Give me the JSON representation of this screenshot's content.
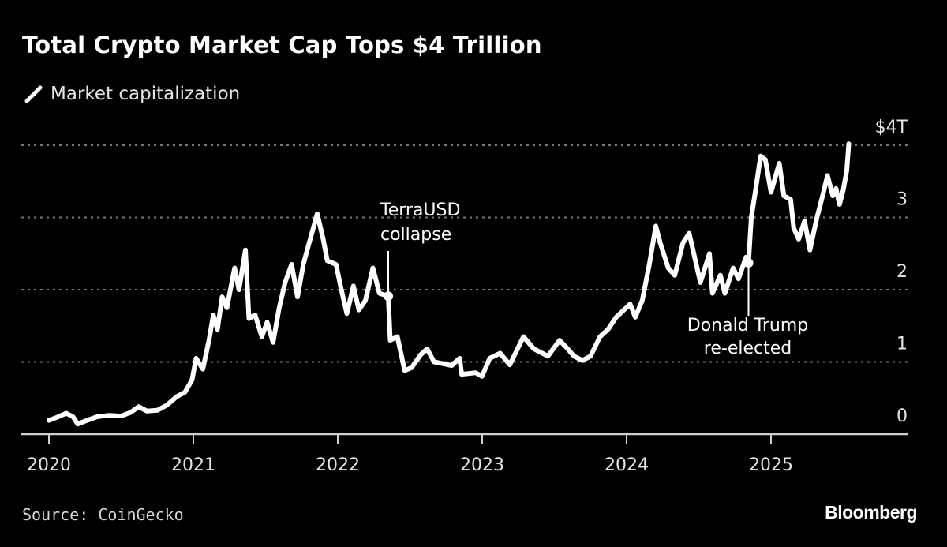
{
  "title": "Total Crypto Market Cap Tops $4 Trillion",
  "legend": {
    "icon": "line-swatch-icon",
    "label": "Market capitalization"
  },
  "source": "Source: CoinGecko",
  "logo": "Bloomberg",
  "colors": {
    "background": "#000000",
    "line": "#ffffff",
    "grid": "#777777",
    "text": "#e6e6e6"
  },
  "chart_data": {
    "type": "line",
    "title": "Total Crypto Market Cap Tops $4 Trillion",
    "xlabel": "",
    "ylabel": "",
    "x_ticks": [
      "2020",
      "2021",
      "2022",
      "2023",
      "2024",
      "2025"
    ],
    "y_ticks": [
      {
        "value": 0,
        "label": "0"
      },
      {
        "value": 1,
        "label": "1"
      },
      {
        "value": 2,
        "label": "2"
      },
      {
        "value": 3,
        "label": "3"
      },
      {
        "value": 4,
        "label": "$4T"
      }
    ],
    "ylim": [
      0,
      4
    ],
    "xlim": [
      "2019-10-15",
      "2025-09-15"
    ],
    "grid": "horizontal dotted",
    "y_axis_position": "right",
    "legend_position": "top-left",
    "unit": "trillion USD",
    "series": [
      {
        "name": "Market capitalization",
        "points": [
          [
            "2020-01-01",
            0.19
          ],
          [
            "2020-01-20",
            0.23
          ],
          [
            "2020-02-14",
            0.29
          ],
          [
            "2020-03-01",
            0.24
          ],
          [
            "2020-03-13",
            0.14
          ],
          [
            "2020-04-01",
            0.18
          ],
          [
            "2020-05-01",
            0.24
          ],
          [
            "2020-06-01",
            0.26
          ],
          [
            "2020-07-01",
            0.25
          ],
          [
            "2020-07-25",
            0.3
          ],
          [
            "2020-08-15",
            0.38
          ],
          [
            "2020-09-05",
            0.32
          ],
          [
            "2020-10-01",
            0.33
          ],
          [
            "2020-10-25",
            0.4
          ],
          [
            "2020-11-20",
            0.52
          ],
          [
            "2020-12-10",
            0.58
          ],
          [
            "2020-12-28",
            0.75
          ],
          [
            "2021-01-08",
            1.05
          ],
          [
            "2021-01-25",
            0.9
          ],
          [
            "2021-02-10",
            1.3
          ],
          [
            "2021-02-21",
            1.65
          ],
          [
            "2021-03-01",
            1.45
          ],
          [
            "2021-03-13",
            1.9
          ],
          [
            "2021-03-25",
            1.75
          ],
          [
            "2021-04-14",
            2.3
          ],
          [
            "2021-04-25",
            2.0
          ],
          [
            "2021-05-11",
            2.55
          ],
          [
            "2021-05-20",
            1.6
          ],
          [
            "2021-06-05",
            1.65
          ],
          [
            "2021-06-22",
            1.35
          ],
          [
            "2021-07-05",
            1.55
          ],
          [
            "2021-07-20",
            1.27
          ],
          [
            "2021-08-05",
            1.75
          ],
          [
            "2021-08-20",
            2.1
          ],
          [
            "2021-09-06",
            2.35
          ],
          [
            "2021-09-21",
            1.9
          ],
          [
            "2021-10-05",
            2.35
          ],
          [
            "2021-10-20",
            2.65
          ],
          [
            "2021-11-10",
            3.05
          ],
          [
            "2021-11-25",
            2.7
          ],
          [
            "2021-12-05",
            2.4
          ],
          [
            "2021-12-27",
            2.35
          ],
          [
            "2022-01-10",
            2.0
          ],
          [
            "2022-01-24",
            1.67
          ],
          [
            "2022-02-10",
            2.05
          ],
          [
            "2022-02-24",
            1.72
          ],
          [
            "2022-03-10",
            1.85
          ],
          [
            "2022-03-29",
            2.3
          ],
          [
            "2022-04-15",
            1.95
          ],
          [
            "2022-05-07",
            1.91
          ],
          [
            "2022-05-12",
            1.3
          ],
          [
            "2022-05-30",
            1.35
          ],
          [
            "2022-06-18",
            0.88
          ],
          [
            "2022-07-05",
            0.92
          ],
          [
            "2022-07-28",
            1.1
          ],
          [
            "2022-08-14",
            1.18
          ],
          [
            "2022-09-01",
            1.0
          ],
          [
            "2022-09-20",
            0.98
          ],
          [
            "2022-10-15",
            0.95
          ],
          [
            "2022-11-05",
            1.05
          ],
          [
            "2022-11-10",
            0.83
          ],
          [
            "2022-12-15",
            0.85
          ],
          [
            "2022-12-31",
            0.8
          ],
          [
            "2023-01-20",
            1.05
          ],
          [
            "2023-02-16",
            1.12
          ],
          [
            "2023-03-10",
            0.96
          ],
          [
            "2023-04-14",
            1.35
          ],
          [
            "2023-05-10",
            1.18
          ],
          [
            "2023-06-15",
            1.08
          ],
          [
            "2023-07-14",
            1.3
          ],
          [
            "2023-08-01",
            1.2
          ],
          [
            "2023-08-20",
            1.08
          ],
          [
            "2023-09-11",
            1.02
          ],
          [
            "2023-10-01",
            1.08
          ],
          [
            "2023-10-25",
            1.35
          ],
          [
            "2023-11-15",
            1.45
          ],
          [
            "2023-12-05",
            1.62
          ],
          [
            "2024-01-10",
            1.8
          ],
          [
            "2024-01-23",
            1.62
          ],
          [
            "2024-02-10",
            1.85
          ],
          [
            "2024-02-28",
            2.35
          ],
          [
            "2024-03-14",
            2.88
          ],
          [
            "2024-03-25",
            2.65
          ],
          [
            "2024-04-15",
            2.3
          ],
          [
            "2024-05-01",
            2.2
          ],
          [
            "2024-05-22",
            2.65
          ],
          [
            "2024-06-07",
            2.78
          ],
          [
            "2024-06-25",
            2.35
          ],
          [
            "2024-07-05",
            2.1
          ],
          [
            "2024-07-28",
            2.5
          ],
          [
            "2024-08-05",
            1.95
          ],
          [
            "2024-08-25",
            2.2
          ],
          [
            "2024-09-06",
            1.95
          ],
          [
            "2024-09-27",
            2.3
          ],
          [
            "2024-10-10",
            2.15
          ],
          [
            "2024-10-29",
            2.45
          ],
          [
            "2024-11-05",
            2.37
          ],
          [
            "2024-11-12",
            3.0
          ],
          [
            "2024-11-22",
            3.35
          ],
          [
            "2024-12-05",
            3.85
          ],
          [
            "2024-12-17",
            3.8
          ],
          [
            "2025-01-01",
            3.35
          ],
          [
            "2025-01-22",
            3.75
          ],
          [
            "2025-02-03",
            3.3
          ],
          [
            "2025-02-20",
            3.25
          ],
          [
            "2025-02-28",
            2.85
          ],
          [
            "2025-03-10",
            2.7
          ],
          [
            "2025-03-25",
            2.95
          ],
          [
            "2025-04-08",
            2.55
          ],
          [
            "2025-04-25",
            2.98
          ],
          [
            "2025-05-12",
            3.35
          ],
          [
            "2025-05-22",
            3.58
          ],
          [
            "2025-06-05",
            3.3
          ],
          [
            "2025-06-13",
            3.4
          ],
          [
            "2025-06-22",
            3.18
          ],
          [
            "2025-07-01",
            3.38
          ],
          [
            "2025-07-10",
            3.65
          ],
          [
            "2025-07-15",
            4.02
          ]
        ]
      }
    ],
    "annotations": [
      {
        "date": "2022-05-07",
        "value": 1.91,
        "lines": [
          "TerraUSD",
          "collapse"
        ],
        "position": "above"
      },
      {
        "date": "2024-11-05",
        "value": 2.37,
        "lines": [
          "Donald Trump",
          "re-elected"
        ],
        "position": "below"
      }
    ]
  }
}
